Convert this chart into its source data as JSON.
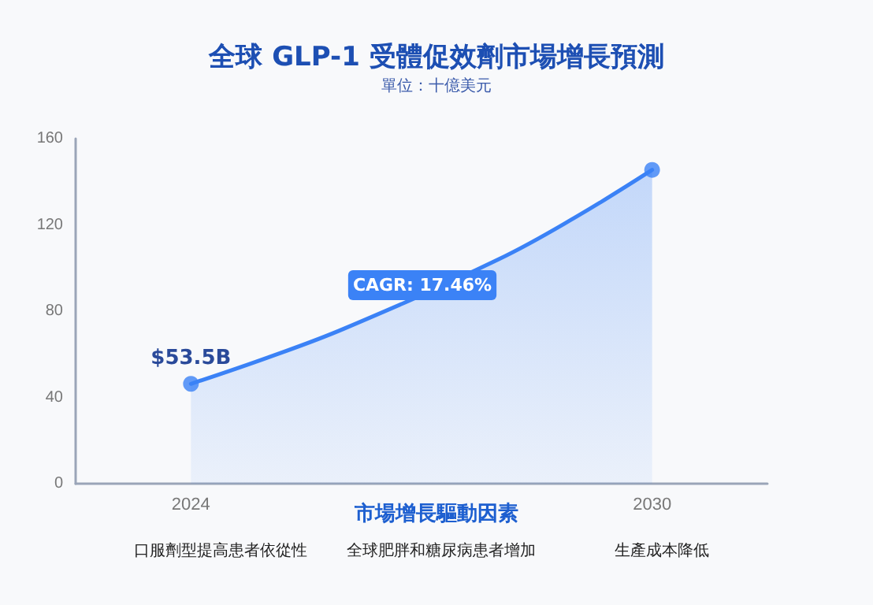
{
  "chart_data": {
    "type": "area",
    "title": "全球 GLP-1 受體促效劑市場增長預測",
    "subtitle": "單位：十億美元",
    "xlabel": "市場增長驅動因素",
    "series": [
      {
        "color": "#3b82f6",
        "marker": "none",
        "x": [
          2024,
          2025,
          2026,
          2028,
          2029,
          2030
        ],
        "values": [
          46.3,
          58.5,
          72,
          104,
          123.5,
          145.5
        ]
      },
      {
        "type": "scatter",
        "color": "#3b82f6",
        "x": [
          2024,
          2030
        ],
        "values": [
          46.3,
          145.5
        ]
      }
    ],
    "xlim": [
      2022.5,
      2031.5
    ],
    "xticks": [
      2024,
      2030
    ],
    "ylim": [
      0,
      160
    ],
    "yticks": [
      0,
      40,
      80,
      120,
      160
    ],
    "grid": false,
    "marker": "circle",
    "annotations": [
      {
        "text": "$53.5B",
        "x": 2024,
        "y": 53.5
      },
      "CAGR: 17.46%",
      "口服劑型提高患者依從性",
      "全球肥胖和糖尿病患者增加",
      "生產成本降低"
    ]
  }
}
